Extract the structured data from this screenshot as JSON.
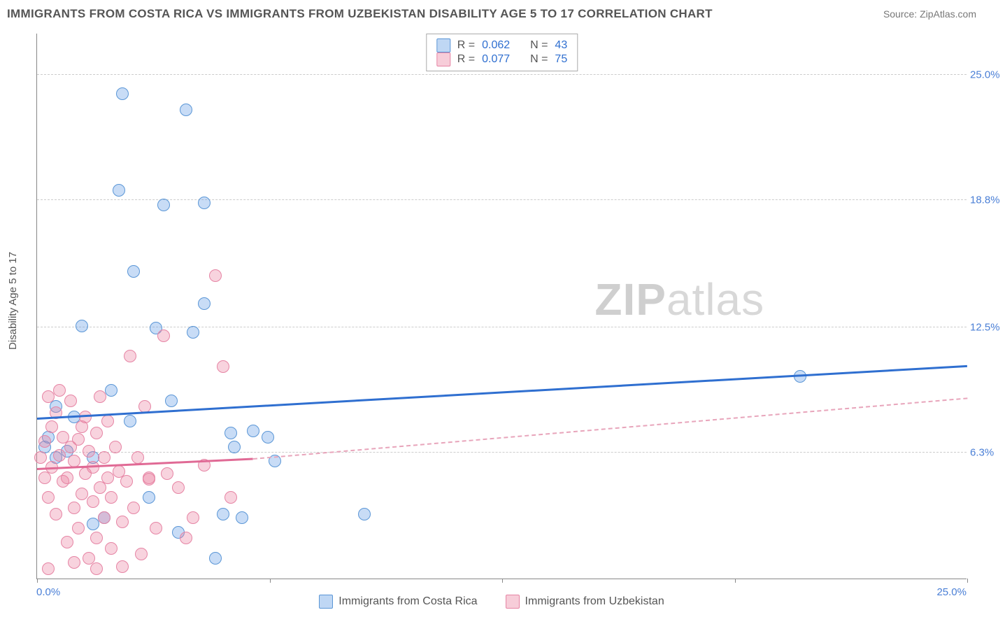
{
  "title": "IMMIGRANTS FROM COSTA RICA VS IMMIGRANTS FROM UZBEKISTAN DISABILITY AGE 5 TO 17 CORRELATION CHART",
  "source": "Source: ZipAtlas.com",
  "y_axis_title": "Disability Age 5 to 17",
  "watermark_bold": "ZIP",
  "watermark_light": "atlas",
  "chart": {
    "type": "scatter",
    "xlim": [
      0,
      25
    ],
    "ylim": [
      0,
      27
    ],
    "x_tick_positions": [
      0,
      6.25,
      12.5,
      18.75,
      25
    ],
    "x_labels": {
      "min": "0.0%",
      "max": "25.0%"
    },
    "y_gridlines": [
      {
        "value": 6.3,
        "label": "6.3%"
      },
      {
        "value": 12.5,
        "label": "12.5%"
      },
      {
        "value": 18.8,
        "label": "18.8%"
      },
      {
        "value": 25.0,
        "label": "25.0%"
      }
    ],
    "background_color": "#ffffff",
    "grid_color": "#cccccc",
    "axis_color": "#888888",
    "marker_size": 18,
    "series": [
      {
        "key": "costa_rica",
        "label": "Immigrants from Costa Rica",
        "color_fill": "rgba(96,156,228,0.35)",
        "color_stroke": "#5a96d6",
        "R": "0.062",
        "N": "43",
        "trend": {
          "x1": 0,
          "y1": 8.0,
          "x2": 25,
          "y2": 10.6,
          "color": "#2f6fd0",
          "width": 3,
          "style": "solid"
        },
        "points": [
          [
            0.2,
            6.5
          ],
          [
            0.3,
            7.0
          ],
          [
            0.5,
            6.0
          ],
          [
            0.5,
            8.5
          ],
          [
            0.8,
            6.3
          ],
          [
            1.0,
            8.0
          ],
          [
            1.2,
            12.5
          ],
          [
            1.5,
            6.0
          ],
          [
            1.5,
            2.7
          ],
          [
            1.8,
            3.0
          ],
          [
            2.0,
            9.3
          ],
          [
            2.2,
            19.2
          ],
          [
            2.3,
            24.0
          ],
          [
            2.5,
            7.8
          ],
          [
            2.6,
            15.2
          ],
          [
            3.0,
            4.0
          ],
          [
            3.2,
            12.4
          ],
          [
            3.4,
            18.5
          ],
          [
            3.6,
            8.8
          ],
          [
            3.8,
            2.3
          ],
          [
            4.0,
            23.2
          ],
          [
            4.2,
            12.2
          ],
          [
            4.5,
            18.6
          ],
          [
            4.5,
            13.6
          ],
          [
            4.8,
            1.0
          ],
          [
            5.0,
            3.2
          ],
          [
            5.2,
            7.2
          ],
          [
            5.3,
            6.5
          ],
          [
            5.5,
            3.0
          ],
          [
            5.8,
            7.3
          ],
          [
            6.2,
            7.0
          ],
          [
            6.4,
            5.8
          ],
          [
            8.8,
            3.2
          ],
          [
            20.5,
            10.0
          ]
        ]
      },
      {
        "key": "uzbekistan",
        "label": "Immigrants from Uzbekistan",
        "color_fill": "rgba(235,130,160,0.35)",
        "color_stroke": "#e684a4",
        "R": "0.077",
        "N": "75",
        "trend": {
          "x1": 0,
          "y1": 5.5,
          "x2": 5.8,
          "y2": 6.0,
          "color": "#e06a95",
          "width": 3,
          "style": "solid"
        },
        "trend_ext": {
          "x1": 5.8,
          "y1": 6.0,
          "x2": 25,
          "y2": 9.0,
          "color": "#e8a5bb",
          "width": 2,
          "style": "dashed"
        },
        "points": [
          [
            0.1,
            6.0
          ],
          [
            0.2,
            5.0
          ],
          [
            0.2,
            6.8
          ],
          [
            0.3,
            9.0
          ],
          [
            0.3,
            4.0
          ],
          [
            0.4,
            5.5
          ],
          [
            0.4,
            7.5
          ],
          [
            0.5,
            8.2
          ],
          [
            0.5,
            3.2
          ],
          [
            0.6,
            6.1
          ],
          [
            0.6,
            9.3
          ],
          [
            0.7,
            4.8
          ],
          [
            0.7,
            7.0
          ],
          [
            0.8,
            1.8
          ],
          [
            0.8,
            5.0
          ],
          [
            0.9,
            6.5
          ],
          [
            0.9,
            8.8
          ],
          [
            1.0,
            3.5
          ],
          [
            1.0,
            5.8
          ],
          [
            1.1,
            6.9
          ],
          [
            1.1,
            2.5
          ],
          [
            1.2,
            7.5
          ],
          [
            1.2,
            4.2
          ],
          [
            1.3,
            5.2
          ],
          [
            1.3,
            8.0
          ],
          [
            1.4,
            1.0
          ],
          [
            1.4,
            6.3
          ],
          [
            1.5,
            3.8
          ],
          [
            1.5,
            5.5
          ],
          [
            1.6,
            7.2
          ],
          [
            1.6,
            2.0
          ],
          [
            1.7,
            4.5
          ],
          [
            1.7,
            9.0
          ],
          [
            1.8,
            6.0
          ],
          [
            1.8,
            3.0
          ],
          [
            1.9,
            5.0
          ],
          [
            1.9,
            7.8
          ],
          [
            2.0,
            1.5
          ],
          [
            2.0,
            4.0
          ],
          [
            2.1,
            6.5
          ],
          [
            2.2,
            5.3
          ],
          [
            2.3,
            2.8
          ],
          [
            2.4,
            4.8
          ],
          [
            2.5,
            11.0
          ],
          [
            2.6,
            3.5
          ],
          [
            2.7,
            6.0
          ],
          [
            2.8,
            1.2
          ],
          [
            2.9,
            8.5
          ],
          [
            3.0,
            5.0
          ],
          [
            3.0,
            4.9
          ],
          [
            3.2,
            2.5
          ],
          [
            3.4,
            12.0
          ],
          [
            3.5,
            5.2
          ],
          [
            3.8,
            4.5
          ],
          [
            4.0,
            2.0
          ],
          [
            4.2,
            3.0
          ],
          [
            4.5,
            5.6
          ],
          [
            4.8,
            15.0
          ],
          [
            5.0,
            10.5
          ],
          [
            5.2,
            4.0
          ],
          [
            0.3,
            0.5
          ],
          [
            1.0,
            0.8
          ],
          [
            1.6,
            0.5
          ],
          [
            2.3,
            0.6
          ]
        ]
      }
    ]
  },
  "stats_box": {
    "rows": [
      {
        "swatch": "blue",
        "R_label": "R =",
        "R_val": "0.062",
        "N_label": "N =",
        "N_val": "43"
      },
      {
        "swatch": "pink",
        "R_label": "R =",
        "R_val": "0.077",
        "N_label": "N =",
        "N_val": "75"
      }
    ]
  },
  "legend": [
    {
      "swatch": "blue",
      "label": "Immigrants from Costa Rica"
    },
    {
      "swatch": "pink",
      "label": "Immigrants from Uzbekistan"
    }
  ]
}
